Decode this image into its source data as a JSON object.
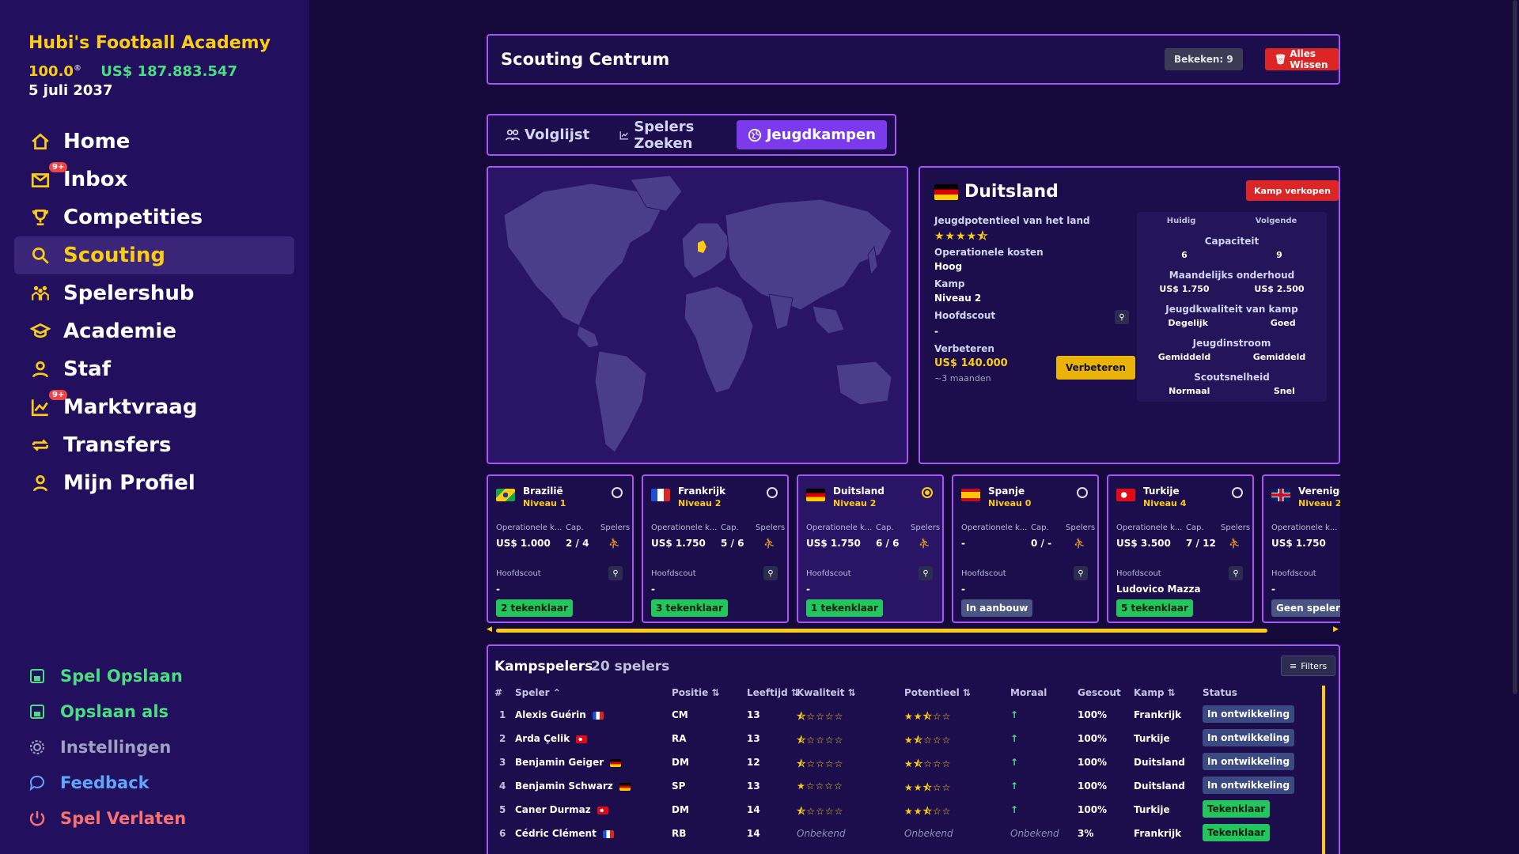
{
  "club": {
    "name": "Hubi's Football Academy",
    "reputation": "100.0",
    "money": "US$ 187.883.547",
    "date": "5 juli 2037"
  },
  "nav": [
    {
      "label": "Home",
      "icon": "home-icon"
    },
    {
      "label": "Inbox",
      "icon": "mail-icon",
      "badge": "9+"
    },
    {
      "label": "Competities",
      "icon": "trophy-icon"
    },
    {
      "label": "Scouting",
      "icon": "search-icon",
      "active": true
    },
    {
      "label": "Spelershub",
      "icon": "players-icon"
    },
    {
      "label": "Academie",
      "icon": "graduation-icon"
    },
    {
      "label": "Staf",
      "icon": "staff-icon"
    },
    {
      "label": "Marktvraag",
      "icon": "chart-icon",
      "badge": "9+"
    },
    {
      "label": "Transfers",
      "icon": "transfer-icon"
    },
    {
      "label": "Mijn Profiel",
      "icon": "user-icon"
    }
  ],
  "bottom_nav": [
    {
      "label": "Spel Opslaan",
      "color": "#4ade80"
    },
    {
      "label": "Opslaan als",
      "color": "#4ade80"
    },
    {
      "label": "Instellingen",
      "color": "#a0a0c0"
    },
    {
      "label": "Feedback",
      "color": "#60a5fa"
    },
    {
      "label": "Spel Verlaten",
      "color": "#f87171"
    }
  ],
  "header": {
    "title": "Scouting Centrum",
    "seen": "Bekeken: 9",
    "clear": "Alles Wissen"
  },
  "tabs": [
    {
      "label": "Volglijst"
    },
    {
      "label": "Spelers Zoeken"
    },
    {
      "label": "Jeugdkampen",
      "active": true
    }
  ],
  "detail": {
    "country": "Duitsland",
    "sell": "Kamp verkopen",
    "potential_label": "Jeugdpotentieel van het land",
    "potential_stars": "★★★★⯪",
    "op_label": "Operationele kosten",
    "op_value": "Hoog",
    "camp_label": "Kamp",
    "camp_value": "Niveau 2",
    "scout_label": "Hoofdscout",
    "scout_value": "-",
    "improve_label": "Verbeteren",
    "improve_cost": "US$ 140.000",
    "improve_time": "~3 maanden",
    "improve_button": "Verbeteren",
    "cmp_current": "Huidig",
    "cmp_next": "Volgende",
    "cmp": [
      {
        "label": "Capaciteit",
        "cur": "6",
        "next": "9"
      },
      {
        "label": "Maandelijks onderhoud",
        "cur": "US$ 1.750",
        "next": "US$ 2.500"
      },
      {
        "label": "Jeugdkwaliteit van kamp",
        "cur": "Degelijk",
        "next": "Goed"
      },
      {
        "label": "Jeugdinstroom",
        "cur": "Gemiddeld",
        "next": "Gemiddeld"
      },
      {
        "label": "Scoutsnelheid",
        "cur": "Normaal",
        "next": "Snel"
      }
    ]
  },
  "card_labels": {
    "op": "Operationele k...",
    "cap": "Cap.",
    "players": "Spelers",
    "scout": "Hoofdscout"
  },
  "cards": [
    {
      "name": "Brazilië",
      "level": "Niveau 1",
      "op": "US$ 1.000",
      "cap": "2 / 4",
      "scout": "-",
      "tag": "2 tekenklaar",
      "tag_type": "green"
    },
    {
      "name": "Frankrijk",
      "level": "Niveau 2",
      "op": "US$ 1.750",
      "cap": "5 / 6",
      "scout": "-",
      "tag": "3 tekenklaar",
      "tag_type": "green"
    },
    {
      "name": "Duitsland",
      "level": "Niveau 2",
      "op": "US$ 1.750",
      "cap": "6 / 6",
      "scout": "-",
      "tag": "1 tekenklaar",
      "tag_type": "green",
      "selected": true
    },
    {
      "name": "Spanje",
      "level": "Niveau 0",
      "op": "-",
      "cap": "0 / -",
      "scout": "-",
      "tag": "In aanbouw",
      "tag_type": "gray"
    },
    {
      "name": "Turkije",
      "level": "Niveau 4",
      "op": "US$ 3.500",
      "cap": "7 / 12",
      "scout": "Ludovico Mazza",
      "tag": "5 tekenklaar",
      "tag_type": "green"
    },
    {
      "name": "Verenigd",
      "level": "Niveau 2",
      "op": "US$ 1.750",
      "cap": "",
      "scout": "-",
      "tag": "Geen spelers",
      "tag_type": "gray"
    }
  ],
  "table": {
    "title": "Kampspelers",
    "count": "20 spelers",
    "filters": "Filters",
    "headers": [
      "#",
      "Speler ⌃",
      "Positie ⇅",
      "Leeftijd ⇅",
      "Kwaliteit ⇅",
      "Potentieel ⇅",
      "Moraal",
      "Gescout",
      "Kamp ⇅",
      "Status"
    ],
    "rows": [
      {
        "n": "1",
        "name": "Alexis Guérin",
        "pos": "CM",
        "age": "13",
        "q": "⯪☆☆☆☆",
        "p": "★★⯪☆☆",
        "m": "↑",
        "sc": "100%",
        "camp": "Frankrijk",
        "st": "In ontwikkeling",
        "st_type": "dev",
        "flag": "fr"
      },
      {
        "n": "2",
        "name": "Arda Çelik",
        "pos": "RA",
        "age": "13",
        "q": "⯪☆☆☆☆",
        "p": "★⯪☆☆☆",
        "m": "↑",
        "sc": "100%",
        "camp": "Turkije",
        "st": "In ontwikkeling",
        "st_type": "dev",
        "flag": "tr"
      },
      {
        "n": "3",
        "name": "Benjamin Geiger",
        "pos": "DM",
        "age": "12",
        "q": "⯪☆☆☆☆",
        "p": "★⯪☆☆☆",
        "m": "↑",
        "sc": "100%",
        "camp": "Duitsland",
        "st": "In ontwikkeling",
        "st_type": "dev",
        "flag": "de"
      },
      {
        "n": "4",
        "name": "Benjamin Schwarz",
        "pos": "SP",
        "age": "13",
        "q": "★☆☆☆☆",
        "p": "★★⯪☆☆",
        "m": "↑",
        "sc": "100%",
        "camp": "Duitsland",
        "st": "In ontwikkeling",
        "st_type": "dev",
        "flag": "de"
      },
      {
        "n": "5",
        "name": "Caner Durmaz",
        "pos": "DM",
        "age": "14",
        "q": "⯪☆☆☆☆",
        "p": "★★⯪☆☆",
        "m": "↑",
        "sc": "100%",
        "camp": "Turkije",
        "st": "Tekenklaar",
        "st_type": "ready",
        "flag": "tr"
      },
      {
        "n": "6",
        "name": "Cédric Clément",
        "pos": "RB",
        "age": "14",
        "q": "Onbekend",
        "p": "Onbekend",
        "m": "Onbekend",
        "sc": "3%",
        "camp": "Frankrijk",
        "st": "Tekenklaar",
        "st_type": "ready",
        "flag": "fr",
        "unknown": true
      }
    ]
  }
}
